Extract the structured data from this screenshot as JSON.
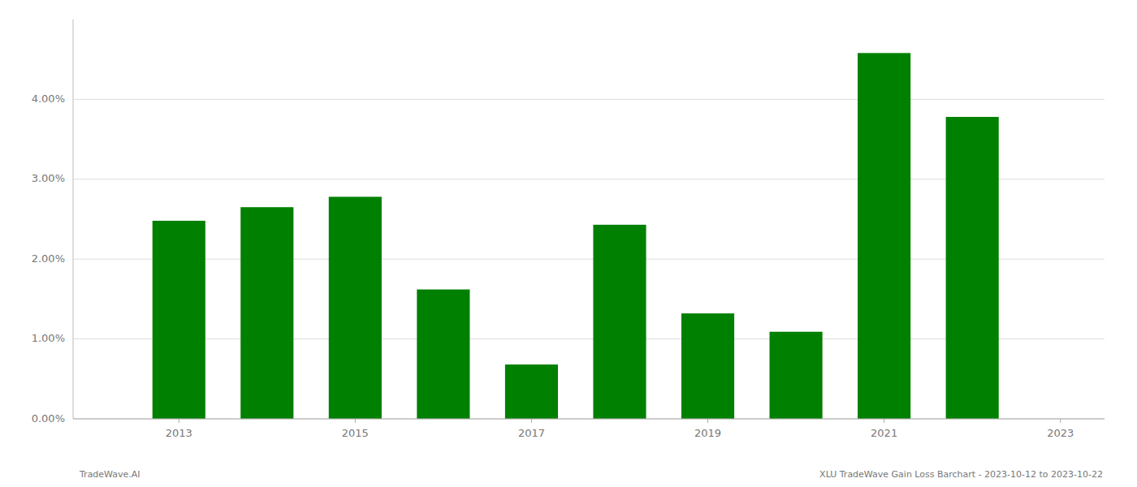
{
  "chart_data": {
    "type": "bar",
    "x": [
      2013,
      2014,
      2015,
      2016,
      2017,
      2018,
      2019,
      2020,
      2021,
      2022
    ],
    "values": [
      0.0248,
      0.0265,
      0.0278,
      0.0162,
      0.0068,
      0.0243,
      0.0132,
      0.0109,
      0.0458,
      0.0378
    ],
    "color": "#008000",
    "xlim": [
      2011.8,
      2023.5
    ],
    "xticks": [
      2013,
      2015,
      2017,
      2019,
      2021,
      2023
    ],
    "ylim": [
      0,
      0.05
    ],
    "yticks": [
      {
        "value": 0,
        "label": "0.00%"
      },
      {
        "value": 0.01,
        "label": "1.00%"
      },
      {
        "value": 0.02,
        "label": "2.00%"
      },
      {
        "value": 0.03,
        "label": "3.00%"
      },
      {
        "value": 0.04,
        "label": "4.00%"
      }
    ],
    "grid": true,
    "annotations": [
      "TradeWave.AI",
      "XLU TradeWave Gain Loss Barchart - 2023-10-12 to 2023-10-22"
    ]
  }
}
